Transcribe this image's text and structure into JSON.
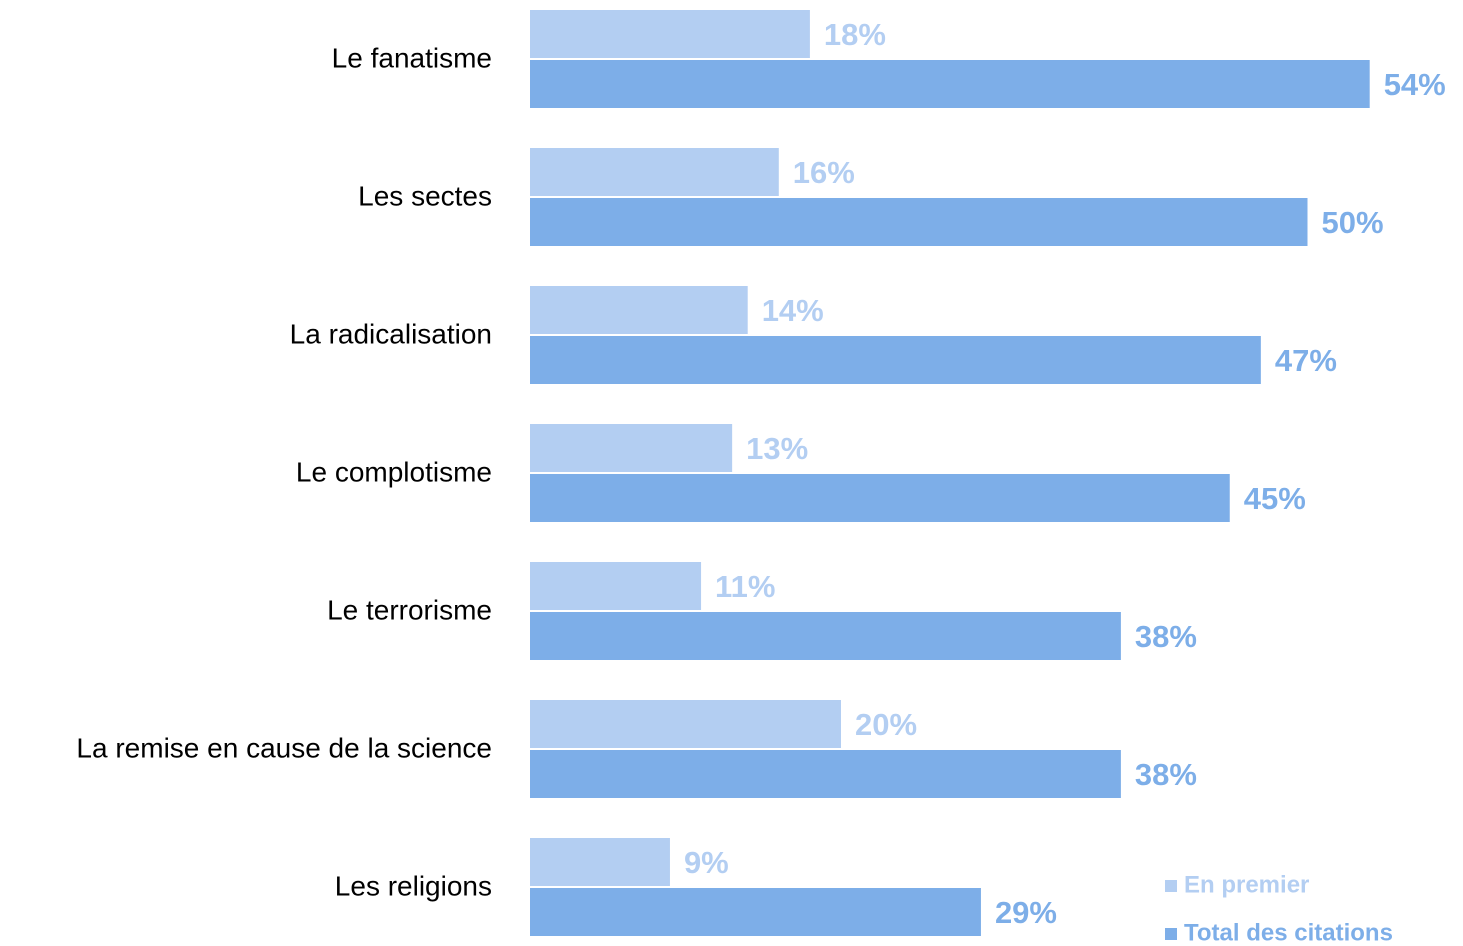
{
  "chart_data": {
    "type": "barh",
    "categories": [
      "Le fanatisme",
      "Les sectes",
      "La radicalisation",
      "Le complotisme",
      "Le terrorisme",
      "La remise en cause de la science",
      "Les religions"
    ],
    "series": [
      {
        "name": "En premier",
        "color": "#b3cef2",
        "values": [
          18,
          16,
          14,
          13,
          11,
          20,
          9
        ],
        "value_labels": [
          "18%",
          "16%",
          "14%",
          "13%",
          "11%",
          "20%",
          "9%"
        ]
      },
      {
        "name": "Total des citations",
        "color": "#7daee8",
        "values": [
          54,
          50,
          47,
          45,
          38,
          38,
          29
        ],
        "value_labels": [
          "54%",
          "50%",
          "47%",
          "45%",
          "38%",
          "38%",
          "29%"
        ]
      }
    ],
    "xlim": [
      0,
      60
    ],
    "legend": "lower right"
  }
}
